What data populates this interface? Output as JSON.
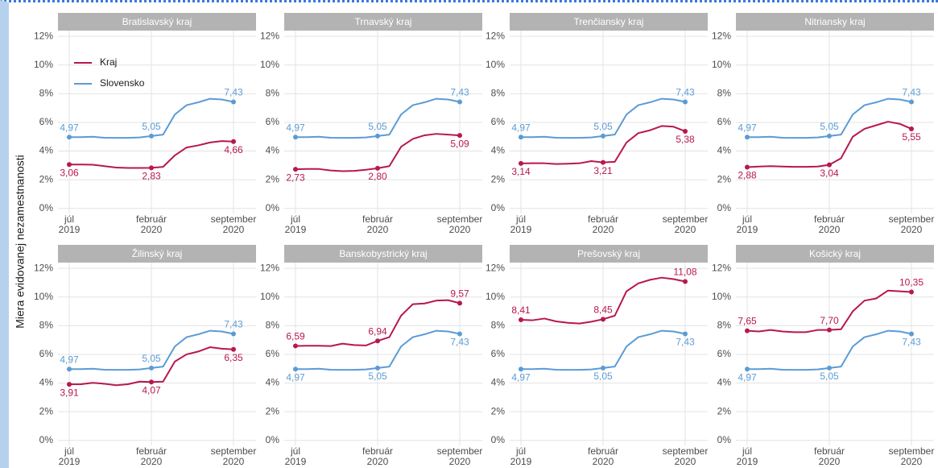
{
  "ylabel": "Miera evidovanej nezamestnanosti",
  "legend": "top-left",
  "chart_data": [
    {
      "type": "line",
      "title": "Bratislavský kraj",
      "categories": [
        "júl\n2019",
        null,
        null,
        null,
        null,
        null,
        null,
        "február\n2020",
        null,
        null,
        null,
        null,
        null,
        null,
        "september\n2020"
      ],
      "ylim": [
        -0.35,
        12.4
      ],
      "yticks": [
        {
          "value": 0,
          "label": "0%"
        },
        {
          "value": 2,
          "label": "2%"
        },
        {
          "value": 4,
          "label": "4%"
        },
        {
          "value": 6,
          "label": "6%"
        },
        {
          "value": 8,
          "label": "8%"
        },
        {
          "value": 10,
          "label": "10%"
        },
        {
          "value": 12,
          "label": "12%"
        }
      ],
      "grid": true,
      "series": [
        {
          "name": "Kraj",
          "color": "#b8174f",
          "values": [
            3.06,
            3.06,
            3.05,
            2.95,
            2.85,
            2.82,
            2.82,
            2.83,
            2.9,
            3.7,
            4.25,
            4.4,
            4.6,
            4.7,
            4.66
          ],
          "value_labels": [
            "3,06",
            null,
            null,
            null,
            null,
            null,
            null,
            "2,83",
            null,
            null,
            null,
            null,
            null,
            null,
            "4,66"
          ]
        },
        {
          "name": "Slovensko",
          "color": "#5b9bd5",
          "values": [
            4.97,
            4.97,
            5.0,
            4.93,
            4.92,
            4.92,
            4.95,
            5.05,
            5.15,
            6.55,
            7.2,
            7.4,
            7.65,
            7.6,
            7.43
          ],
          "value_labels": [
            "4,97",
            null,
            null,
            null,
            null,
            null,
            null,
            "5,05",
            null,
            null,
            null,
            null,
            null,
            null,
            "7,43"
          ]
        }
      ]
    },
    {
      "type": "line",
      "title": "Trnavský kraj",
      "categories": [
        "júl\n2019",
        null,
        null,
        null,
        null,
        null,
        null,
        "február\n2020",
        null,
        null,
        null,
        null,
        null,
        null,
        "september\n2020"
      ],
      "ylim": [
        -0.35,
        12.4
      ],
      "yticks": [
        {
          "value": 0,
          "label": "0%"
        },
        {
          "value": 2,
          "label": "2%"
        },
        {
          "value": 4,
          "label": "4%"
        },
        {
          "value": 6,
          "label": "6%"
        },
        {
          "value": 8,
          "label": "8%"
        },
        {
          "value": 10,
          "label": "10%"
        },
        {
          "value": 12,
          "label": "12%"
        }
      ],
      "grid": true,
      "series": [
        {
          "name": "Kraj",
          "color": "#b8174f",
          "values": [
            2.73,
            2.75,
            2.75,
            2.65,
            2.6,
            2.62,
            2.7,
            2.8,
            2.95,
            4.3,
            4.85,
            5.1,
            5.2,
            5.15,
            5.09
          ],
          "value_labels": [
            "2,73",
            null,
            null,
            null,
            null,
            null,
            null,
            "2,80",
            null,
            null,
            null,
            null,
            null,
            null,
            "5,09"
          ]
        },
        {
          "name": "Slovensko",
          "color": "#5b9bd5",
          "values": [
            4.97,
            4.97,
            5.0,
            4.93,
            4.92,
            4.92,
            4.95,
            5.05,
            5.15,
            6.55,
            7.2,
            7.4,
            7.65,
            7.6,
            7.43
          ],
          "value_labels": [
            "4,97",
            null,
            null,
            null,
            null,
            null,
            null,
            "5,05",
            null,
            null,
            null,
            null,
            null,
            null,
            "7,43"
          ]
        }
      ]
    },
    {
      "type": "line",
      "title": "Trenčiansky kraj",
      "categories": [
        "júl\n2019",
        null,
        null,
        null,
        null,
        null,
        null,
        "február\n2020",
        null,
        null,
        null,
        null,
        null,
        null,
        "september\n2020"
      ],
      "ylim": [
        -0.35,
        12.4
      ],
      "yticks": [
        {
          "value": 0,
          "label": "0%"
        },
        {
          "value": 2,
          "label": "2%"
        },
        {
          "value": 4,
          "label": "4%"
        },
        {
          "value": 6,
          "label": "6%"
        },
        {
          "value": 8,
          "label": "8%"
        },
        {
          "value": 10,
          "label": "10%"
        },
        {
          "value": 12,
          "label": "12%"
        }
      ],
      "grid": true,
      "series": [
        {
          "name": "Kraj",
          "color": "#b8174f",
          "values": [
            3.14,
            3.15,
            3.15,
            3.1,
            3.12,
            3.15,
            3.3,
            3.21,
            3.25,
            4.6,
            5.25,
            5.45,
            5.75,
            5.7,
            5.38
          ],
          "value_labels": [
            "3,14",
            null,
            null,
            null,
            null,
            null,
            null,
            "3,21",
            null,
            null,
            null,
            null,
            null,
            null,
            "5,38"
          ]
        },
        {
          "name": "Slovensko",
          "color": "#5b9bd5",
          "values": [
            4.97,
            4.97,
            5.0,
            4.93,
            4.92,
            4.92,
            4.95,
            5.05,
            5.15,
            6.55,
            7.2,
            7.4,
            7.65,
            7.6,
            7.43
          ],
          "value_labels": [
            "4,97",
            null,
            null,
            null,
            null,
            null,
            null,
            "5,05",
            null,
            null,
            null,
            null,
            null,
            null,
            "7,43"
          ]
        }
      ]
    },
    {
      "type": "line",
      "title": "Nitriansky kraj",
      "categories": [
        "júl\n2019",
        null,
        null,
        null,
        null,
        null,
        null,
        "február\n2020",
        null,
        null,
        null,
        null,
        null,
        null,
        "september\n2020"
      ],
      "ylim": [
        -0.35,
        12.4
      ],
      "yticks": [
        {
          "value": 0,
          "label": "0%"
        },
        {
          "value": 2,
          "label": "2%"
        },
        {
          "value": 4,
          "label": "4%"
        },
        {
          "value": 6,
          "label": "6%"
        },
        {
          "value": 8,
          "label": "8%"
        },
        {
          "value": 10,
          "label": "10%"
        },
        {
          "value": 12,
          "label": "12%"
        }
      ],
      "grid": true,
      "series": [
        {
          "name": "Kraj",
          "color": "#b8174f",
          "values": [
            2.88,
            2.92,
            2.95,
            2.92,
            2.9,
            2.9,
            2.92,
            3.04,
            3.5,
            5.0,
            5.55,
            5.8,
            6.05,
            5.9,
            5.55
          ],
          "value_labels": [
            "2,88",
            null,
            null,
            null,
            null,
            null,
            null,
            "3,04",
            null,
            null,
            null,
            null,
            null,
            null,
            "5,55"
          ]
        },
        {
          "name": "Slovensko",
          "color": "#5b9bd5",
          "values": [
            4.97,
            4.97,
            5.0,
            4.93,
            4.92,
            4.92,
            4.95,
            5.05,
            5.15,
            6.55,
            7.2,
            7.4,
            7.65,
            7.6,
            7.43
          ],
          "value_labels": [
            "4,97",
            null,
            null,
            null,
            null,
            null,
            null,
            "5,05",
            null,
            null,
            null,
            null,
            null,
            null,
            "7,43"
          ]
        }
      ]
    },
    {
      "type": "line",
      "title": "Žilinský kraj",
      "categories": [
        "júl\n2019",
        null,
        null,
        null,
        null,
        null,
        null,
        "február\n2020",
        null,
        null,
        null,
        null,
        null,
        null,
        "september\n2020"
      ],
      "ylim": [
        -0.35,
        12.4
      ],
      "yticks": [
        {
          "value": 0,
          "label": "0%"
        },
        {
          "value": 2,
          "label": "2%"
        },
        {
          "value": 4,
          "label": "4%"
        },
        {
          "value": 6,
          "label": "6%"
        },
        {
          "value": 8,
          "label": "8%"
        },
        {
          "value": 10,
          "label": "10%"
        },
        {
          "value": 12,
          "label": "12%"
        }
      ],
      "grid": true,
      "series": [
        {
          "name": "Kraj",
          "color": "#b8174f",
          "values": [
            3.91,
            3.92,
            4.02,
            3.95,
            3.85,
            3.92,
            4.1,
            4.07,
            4.1,
            5.5,
            6.0,
            6.2,
            6.5,
            6.4,
            6.35
          ],
          "value_labels": [
            "3,91",
            null,
            null,
            null,
            null,
            null,
            null,
            "4,07",
            null,
            null,
            null,
            null,
            null,
            null,
            "6,35"
          ]
        },
        {
          "name": "Slovensko",
          "color": "#5b9bd5",
          "values": [
            4.97,
            4.97,
            5.0,
            4.93,
            4.92,
            4.92,
            4.95,
            5.05,
            5.15,
            6.55,
            7.2,
            7.4,
            7.65,
            7.6,
            7.43
          ],
          "value_labels": [
            "4,97",
            null,
            null,
            null,
            null,
            null,
            null,
            "5,05",
            null,
            null,
            null,
            null,
            null,
            null,
            "7,43"
          ]
        }
      ]
    },
    {
      "type": "line",
      "title": "Banskobystrický kraj",
      "categories": [
        "júl\n2019",
        null,
        null,
        null,
        null,
        null,
        null,
        "február\n2020",
        null,
        null,
        null,
        null,
        null,
        null,
        "september\n2020"
      ],
      "ylim": [
        -0.35,
        12.4
      ],
      "yticks": [
        {
          "value": 0,
          "label": "0%"
        },
        {
          "value": 2,
          "label": "2%"
        },
        {
          "value": 4,
          "label": "4%"
        },
        {
          "value": 6,
          "label": "6%"
        },
        {
          "value": 8,
          "label": "8%"
        },
        {
          "value": 10,
          "label": "10%"
        },
        {
          "value": 12,
          "label": "12%"
        }
      ],
      "grid": true,
      "series": [
        {
          "name": "Kraj",
          "color": "#b8174f",
          "values": [
            6.59,
            6.6,
            6.6,
            6.58,
            6.75,
            6.65,
            6.62,
            6.94,
            7.2,
            8.7,
            9.5,
            9.55,
            9.75,
            9.78,
            9.57
          ],
          "value_labels": [
            "6,59",
            null,
            null,
            null,
            null,
            null,
            null,
            "6,94",
            null,
            null,
            null,
            null,
            null,
            null,
            "9,57"
          ]
        },
        {
          "name": "Slovensko",
          "color": "#5b9bd5",
          "values": [
            4.97,
            4.97,
            5.0,
            4.93,
            4.92,
            4.92,
            4.95,
            5.05,
            5.15,
            6.55,
            7.2,
            7.4,
            7.65,
            7.6,
            7.43
          ],
          "value_labels": [
            "4,97",
            null,
            null,
            null,
            null,
            null,
            null,
            "5,05",
            null,
            null,
            null,
            null,
            null,
            null,
            "7,43"
          ]
        }
      ]
    },
    {
      "type": "line",
      "title": "Prešovský kraj",
      "categories": [
        "júl\n2019",
        null,
        null,
        null,
        null,
        null,
        null,
        "február\n2020",
        null,
        null,
        null,
        null,
        null,
        null,
        "september\n2020"
      ],
      "ylim": [
        -0.35,
        12.4
      ],
      "yticks": [
        {
          "value": 0,
          "label": "0%"
        },
        {
          "value": 2,
          "label": "2%"
        },
        {
          "value": 4,
          "label": "4%"
        },
        {
          "value": 6,
          "label": "6%"
        },
        {
          "value": 8,
          "label": "8%"
        },
        {
          "value": 10,
          "label": "10%"
        },
        {
          "value": 12,
          "label": "12%"
        }
      ],
      "grid": true,
      "series": [
        {
          "name": "Kraj",
          "color": "#b8174f",
          "values": [
            8.41,
            8.38,
            8.5,
            8.3,
            8.2,
            8.15,
            8.28,
            8.45,
            8.7,
            10.4,
            10.95,
            11.2,
            11.35,
            11.25,
            11.08
          ],
          "value_labels": [
            "8,41",
            null,
            null,
            null,
            null,
            null,
            null,
            "8,45",
            null,
            null,
            null,
            null,
            null,
            null,
            "11,08"
          ]
        },
        {
          "name": "Slovensko",
          "color": "#5b9bd5",
          "values": [
            4.97,
            4.97,
            5.0,
            4.93,
            4.92,
            4.92,
            4.95,
            5.05,
            5.15,
            6.55,
            7.2,
            7.4,
            7.65,
            7.6,
            7.43
          ],
          "value_labels": [
            "4,97",
            null,
            null,
            null,
            null,
            null,
            null,
            "5,05",
            null,
            null,
            null,
            null,
            null,
            null,
            "7,43"
          ]
        }
      ]
    },
    {
      "type": "line",
      "title": "Košický kraj",
      "categories": [
        "júl\n2019",
        null,
        null,
        null,
        null,
        null,
        null,
        "február\n2020",
        null,
        null,
        null,
        null,
        null,
        null,
        "september\n2020"
      ],
      "ylim": [
        -0.35,
        12.4
      ],
      "yticks": [
        {
          "value": 0,
          "label": "0%"
        },
        {
          "value": 2,
          "label": "2%"
        },
        {
          "value": 4,
          "label": "4%"
        },
        {
          "value": 6,
          "label": "6%"
        },
        {
          "value": 8,
          "label": "8%"
        },
        {
          "value": 10,
          "label": "10%"
        },
        {
          "value": 12,
          "label": "12%"
        }
      ],
      "grid": true,
      "series": [
        {
          "name": "Kraj",
          "color": "#b8174f",
          "values": [
            7.65,
            7.6,
            7.7,
            7.6,
            7.55,
            7.55,
            7.7,
            7.7,
            7.75,
            9.0,
            9.75,
            9.9,
            10.45,
            10.4,
            10.35
          ],
          "value_labels": [
            "7,65",
            null,
            null,
            null,
            null,
            null,
            null,
            "7,70",
            null,
            null,
            null,
            null,
            null,
            null,
            "10,35"
          ]
        },
        {
          "name": "Slovensko",
          "color": "#5b9bd5",
          "values": [
            4.97,
            4.97,
            5.0,
            4.93,
            4.92,
            4.92,
            4.95,
            5.05,
            5.15,
            6.55,
            7.2,
            7.4,
            7.65,
            7.6,
            7.43
          ],
          "value_labels": [
            "4,97",
            null,
            null,
            null,
            null,
            null,
            null,
            "5,05",
            null,
            null,
            null,
            null,
            null,
            null,
            "7,43"
          ]
        }
      ]
    }
  ]
}
